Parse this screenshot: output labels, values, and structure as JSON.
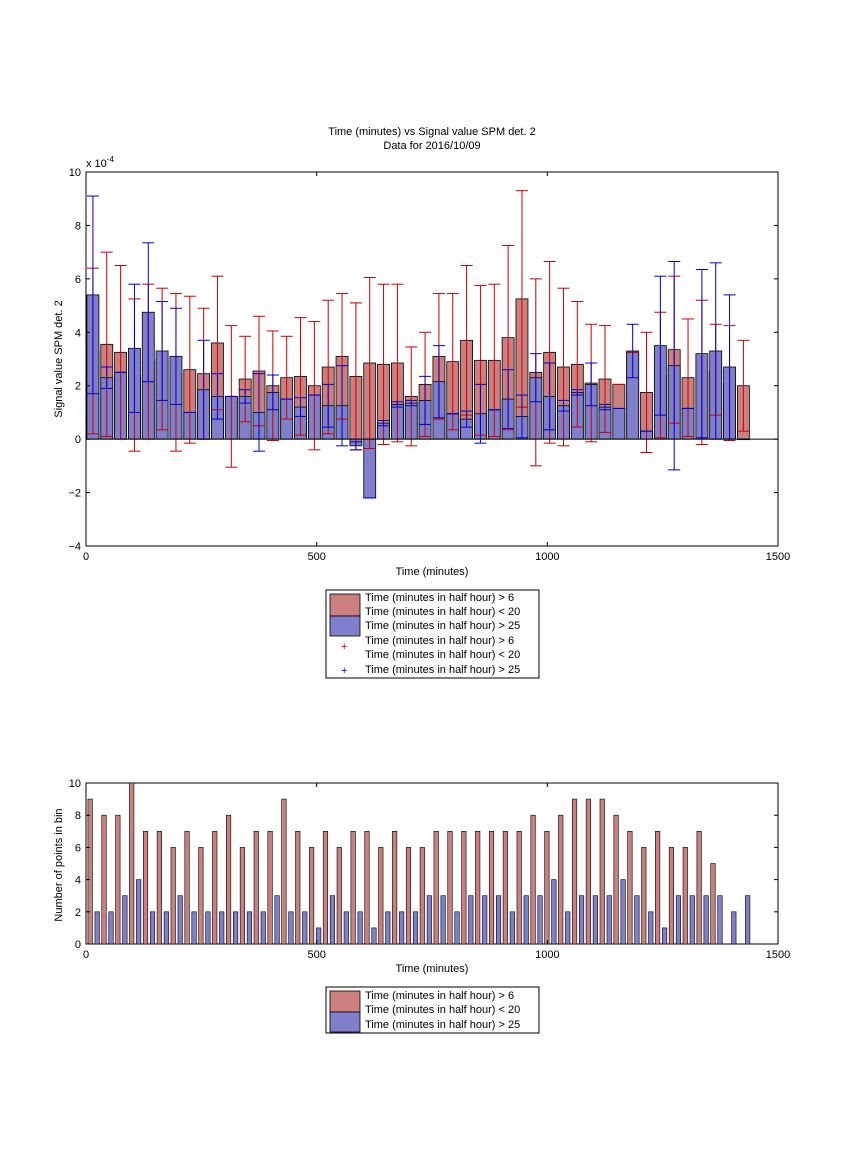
{
  "chart_data": [
    {
      "type": "bar",
      "title": "Time (minutes) vs Signal value SPM det. 2",
      "subtitle": "Data for 2016/10/09",
      "xlabel": "Time (minutes)",
      "ylabel": "Signal value SPM det. 2",
      "exponent_label": "x 10",
      "exponent_power": "-4",
      "xlim": [
        0,
        1500
      ],
      "ylim": [
        -4,
        10
      ],
      "y_scale": 0.0001,
      "xticks": [
        "0",
        "500",
        "1000",
        "1500"
      ],
      "yticks": [
        "−4",
        "−2",
        "0",
        "2",
        "4",
        "6",
        "8",
        "10"
      ],
      "grid": false,
      "legend_position": "below",
      "legend": [
        {
          "kind": "patch",
          "color": "#cc7f7f",
          "lines": [
            "Time (minutes in half hour) > 6",
            "Time (minutes in half hour) < 20"
          ]
        },
        {
          "kind": "patch",
          "color": "#7f7fcc",
          "lines": [
            "Time (minutes in half hour) > 25"
          ]
        },
        {
          "kind": "marker",
          "color": "#cc0000",
          "lines": [
            "Time (minutes in half hour) > 6",
            "Time (minutes in half hour) < 20"
          ]
        },
        {
          "kind": "marker",
          "color": "#0000cc",
          "lines": [
            "Time (minutes in half hour) > 25"
          ]
        }
      ],
      "x": [
        15,
        45,
        75,
        105,
        135,
        165,
        195,
        225,
        255,
        285,
        315,
        345,
        375,
        405,
        435,
        465,
        495,
        525,
        555,
        585,
        615,
        645,
        675,
        705,
        735,
        765,
        795,
        825,
        855,
        885,
        915,
        945,
        975,
        1005,
        1035,
        1065,
        1095,
        1125,
        1155,
        1185,
        1215,
        1245,
        1275,
        1305,
        1335,
        1365,
        1395,
        1425
      ],
      "series": [
        {
          "name": "Time (minutes in half hour) > 6 Time (minutes in half hour) < 20",
          "color": "#cc7f7f",
          "error_color": "#cc0000",
          "values": [
            3.3,
            3.55,
            3.25,
            2.4,
            2.9,
            3.0,
            2.5,
            2.6,
            2.45,
            3.6,
            1.6,
            2.25,
            2.55,
            2.0,
            2.3,
            2.35,
            2.0,
            2.7,
            3.1,
            2.35,
            2.85,
            2.8,
            2.85,
            1.6,
            2.05,
            3.1,
            2.9,
            3.7,
            2.95,
            2.95,
            3.8,
            5.25,
            2.5,
            3.25,
            2.7,
            2.8,
            2.1,
            2.25,
            2.05,
            3.25,
            1.75,
            2.4,
            3.35,
            2.3,
            2.5,
            2.6,
            2.1,
            2.0
          ],
          "err": [
            3.1,
            3.45,
            3.25,
            2.85,
            2.9,
            2.65,
            2.95,
            2.75,
            2.45,
            2.5,
            2.65,
            1.6,
            2.05,
            2.05,
            1.55,
            2.2,
            2.4,
            2.5,
            2.35,
            2.75,
            3.2,
            3.0,
            2.95,
            1.85,
            1.95,
            2.35,
            2.55,
            2.8,
            2.8,
            2.85,
            3.45,
            4.05,
            3.5,
            3.4,
            2.95,
            2.35,
            2.2,
            2.0,
            0.0,
            0.0,
            2.25,
            2.35,
            2.75,
            2.2,
            2.7,
            1.7,
            2.15,
            1.7
          ]
        },
        {
          "name": "Time (minutes in half hour) > 25",
          "color": "#7f7fcc",
          "error_color": "#0000cc",
          "values": [
            5.4,
            2.3,
            2.5,
            3.4,
            4.75,
            3.3,
            3.1,
            1.0,
            1.85,
            1.6,
            1.6,
            1.6,
            1.0,
            1.75,
            1.5,
            1.2,
            1.65,
            1.25,
            1.25,
            -0.25,
            -2.2,
            0.6,
            1.3,
            1.35,
            1.45,
            2.15,
            0.95,
            0.75,
            0.95,
            1.1,
            1.5,
            0.85,
            2.3,
            1.6,
            1.25,
            1.75,
            2.05,
            1.2,
            1.15,
            3.3,
            0.3,
            3.5,
            2.75,
            1.15,
            3.2,
            3.3,
            2.7,
            0.0
          ],
          "err": [
            3.7,
            0.4,
            0.0,
            2.4,
            2.6,
            1.85,
            1.8,
            0.0,
            1.85,
            0.85,
            0.0,
            0.25,
            1.45,
            0.65,
            0.0,
            0.35,
            0.0,
            0.8,
            1.5,
            0.15,
            0.0,
            0.1,
            0.1,
            0.1,
            0.9,
            1.35,
            0.0,
            0.3,
            1.1,
            0.0,
            1.1,
            0.8,
            0.9,
            1.25,
            0.2,
            0.1,
            0.8,
            0.1,
            0.0,
            1.0,
            0.0,
            2.6,
            3.9,
            0.0,
            3.15,
            3.3,
            2.7,
            0.0
          ]
        }
      ]
    },
    {
      "type": "bar",
      "xlabel": "Time (minutes)",
      "ylabel": "Number of points in bin",
      "xlim": [
        0,
        1500
      ],
      "ylim": [
        0,
        10
      ],
      "xticks": [
        "0",
        "500",
        "1000",
        "1500"
      ],
      "yticks": [
        "0",
        "2",
        "4",
        "6",
        "8",
        "10"
      ],
      "grid": false,
      "legend_position": "below",
      "legend": [
        {
          "kind": "patch",
          "color": "#cc7f7f",
          "lines": [
            "Time (minutes in half hour) > 6",
            "Time (minutes in half hour) < 20"
          ]
        },
        {
          "kind": "patch",
          "color": "#7f7fcc",
          "lines": [
            "Time (minutes in half hour) > 25"
          ]
        }
      ],
      "x": [
        15,
        45,
        75,
        105,
        135,
        165,
        195,
        225,
        255,
        285,
        315,
        345,
        375,
        405,
        435,
        465,
        495,
        525,
        555,
        585,
        615,
        645,
        675,
        705,
        735,
        765,
        795,
        825,
        855,
        885,
        915,
        945,
        975,
        1005,
        1035,
        1065,
        1095,
        1125,
        1155,
        1185,
        1215,
        1245,
        1275,
        1305,
        1335,
        1365,
        1395,
        1425
      ],
      "series": [
        {
          "name": "Time (minutes in half hour) > 6 Time (minutes in half hour) < 20",
          "color": "#cc7f7f",
          "values": [
            9,
            8,
            8,
            10,
            7,
            7,
            6,
            7,
            6,
            7,
            8,
            6,
            7,
            7,
            9,
            7,
            6,
            7,
            6,
            7,
            7,
            6,
            7,
            6,
            6,
            7,
            7,
            7,
            7,
            7,
            7,
            7,
            8,
            7,
            8,
            9,
            9,
            9,
            8,
            7,
            6,
            7,
            6,
            6,
            7,
            5,
            0,
            0
          ]
        },
        {
          "name": "Time (minutes in half hour) > 25",
          "color": "#7f7fcc",
          "values": [
            2,
            2,
            3,
            4,
            2,
            2,
            3,
            2,
            2,
            2,
            2,
            2,
            2,
            3,
            2,
            2,
            1,
            3,
            2,
            2,
            1,
            2,
            2,
            2,
            3,
            3,
            2,
            3,
            3,
            3,
            2,
            3,
            3,
            4,
            2,
            3,
            3,
            3,
            4,
            3,
            2,
            1,
            3,
            3,
            3,
            3,
            2,
            3
          ]
        }
      ]
    }
  ]
}
